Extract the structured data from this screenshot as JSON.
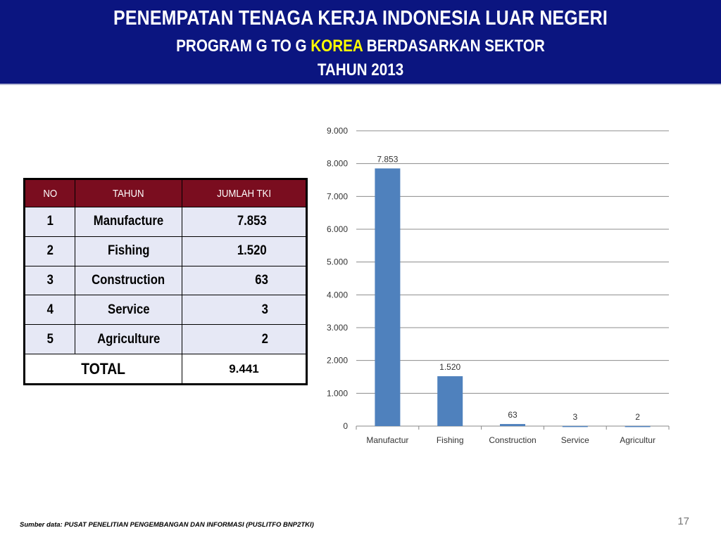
{
  "header": {
    "line1": "PENEMPATAN TENAGA KERJA INDONESIA LUAR NEGERI",
    "line2_pre": "PROGRAM G TO G ",
    "line2_highlight": "KOREA",
    "line2_post": " BERDASARKAN SEKTOR",
    "line3": "TAHUN  2013",
    "colors": {
      "background": "#0b1580",
      "highlight": "#ffff00"
    }
  },
  "table": {
    "headers": [
      "NO",
      "TAHUN",
      "JUMLAH TKI"
    ],
    "rows": [
      {
        "no": "1",
        "sector": "Manufacture",
        "count": "7.853"
      },
      {
        "no": "2",
        "sector": "Fishing",
        "count": "1.520"
      },
      {
        "no": "3",
        "sector": "Construction",
        "count": "63"
      },
      {
        "no": "4",
        "sector": "Service",
        "count": "3"
      },
      {
        "no": "5",
        "sector": "Agriculture",
        "count": "2"
      }
    ],
    "total_label": "TOTAL",
    "total_value": "9.441",
    "colors": {
      "header_bg": "#7a0d1f",
      "row_bg": "#e6e8f5"
    }
  },
  "chart_data": {
    "type": "bar",
    "categories": [
      "Manufactur",
      "Fishing",
      "Construction",
      "Service",
      "Agricultur"
    ],
    "values": [
      7853,
      1520,
      63,
      3,
      2
    ],
    "data_labels": [
      "7.853",
      "1.520",
      "63",
      "3",
      "2"
    ],
    "ylim": [
      0,
      9000
    ],
    "yticks": [
      0,
      1000,
      2000,
      3000,
      4000,
      5000,
      6000,
      7000,
      8000,
      9000
    ],
    "ytick_labels": [
      "0",
      "1.000",
      "2.000",
      "3.000",
      "4.000",
      "5.000",
      "6.000",
      "7.000",
      "8.000",
      "9.000"
    ],
    "grid": true,
    "bar_color": "#4f81bd"
  },
  "footer": {
    "source": "Sumber data: PUSAT PENELITIAN PENGEMBANGAN DAN INFORMASI (PUSLITFO BNP2TKI)",
    "page_number": "17"
  }
}
